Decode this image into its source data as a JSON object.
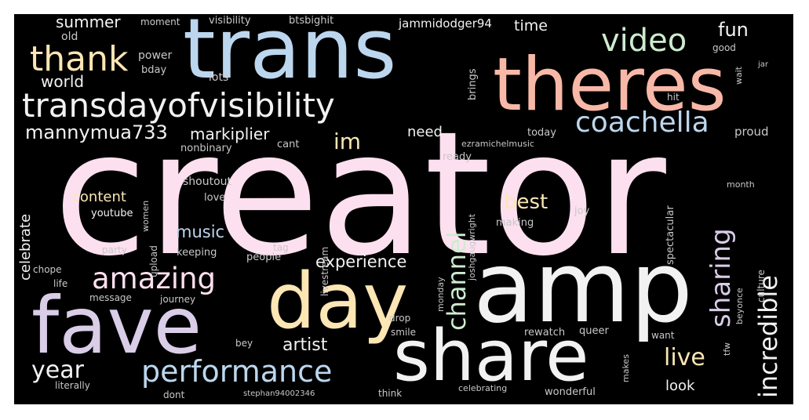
{
  "wordcloud": {
    "colors": {
      "background": "#000000",
      "pink": "#fde0ef",
      "blue": "#bcd6ee",
      "salmon": "#f8b8a8",
      "cream": "#fbe6b4",
      "green": "#cdeccf",
      "lavender": "#d9cde8",
      "white": "#f2f2f2",
      "gray": "#c8c8c8"
    },
    "words": [
      {
        "text": "creator",
        "color": "pink"
      },
      {
        "text": "trans",
        "color": "blue"
      },
      {
        "text": "theres",
        "color": "salmon"
      },
      {
        "text": "amp",
        "color": "white"
      },
      {
        "text": "day",
        "color": "cream"
      },
      {
        "text": "fave",
        "color": "lavender"
      },
      {
        "text": "share",
        "color": "white"
      },
      {
        "text": "transdayofvisibility",
        "color": "white"
      },
      {
        "text": "thank",
        "color": "cream"
      },
      {
        "text": "video",
        "color": "green"
      },
      {
        "text": "coachella",
        "color": "blue"
      },
      {
        "text": "amazing",
        "color": "pink"
      },
      {
        "text": "performance",
        "color": "blue"
      },
      {
        "text": "channel",
        "color": "green"
      },
      {
        "text": "sharing",
        "color": "lavender"
      },
      {
        "text": "incredible",
        "color": "white"
      },
      {
        "text": "live",
        "color": "cream"
      },
      {
        "text": "year",
        "color": "white"
      },
      {
        "text": "im",
        "color": "cream"
      },
      {
        "text": "mannymua733",
        "color": "white"
      },
      {
        "text": "markiplier",
        "color": "white"
      },
      {
        "text": "world",
        "color": "white"
      },
      {
        "text": "summer",
        "color": "white"
      },
      {
        "text": "fun",
        "color": "white"
      },
      {
        "text": "time",
        "color": "white"
      },
      {
        "text": "best",
        "color": "cream"
      },
      {
        "text": "music",
        "color": "blue"
      },
      {
        "text": "experience",
        "color": "white"
      },
      {
        "text": "artist",
        "color": "white"
      },
      {
        "text": "content",
        "color": "cream"
      },
      {
        "text": "celebrate",
        "color": "white"
      },
      {
        "text": "need",
        "color": "white"
      },
      {
        "text": "look",
        "color": "white"
      },
      {
        "text": "jammidodger94",
        "color": "white"
      },
      {
        "text": "visibility",
        "color": "gray"
      },
      {
        "text": "btsbighit",
        "color": "gray"
      },
      {
        "text": "moment",
        "color": "gray"
      },
      {
        "text": "power",
        "color": "gray"
      },
      {
        "text": "bday",
        "color": "gray"
      },
      {
        "text": "lots",
        "color": "gray"
      },
      {
        "text": "old",
        "color": "gray"
      },
      {
        "text": "brings",
        "color": "gray"
      },
      {
        "text": "nonbinary",
        "color": "gray"
      },
      {
        "text": "cant",
        "color": "gray"
      },
      {
        "text": "today",
        "color": "gray"
      },
      {
        "text": "hit",
        "color": "gray"
      },
      {
        "text": "proud",
        "color": "gray"
      },
      {
        "text": "ready",
        "color": "gray"
      },
      {
        "text": "good",
        "color": "gray"
      },
      {
        "text": "shoutout",
        "color": "gray"
      },
      {
        "text": "youtube",
        "color": "white"
      },
      {
        "text": "love",
        "color": "gray"
      },
      {
        "text": "keeping",
        "color": "gray"
      },
      {
        "text": "party",
        "color": "gray"
      },
      {
        "text": "upload",
        "color": "gray"
      },
      {
        "text": "people",
        "color": "gray"
      },
      {
        "text": "chope",
        "color": "gray"
      },
      {
        "text": "life",
        "color": "gray"
      },
      {
        "text": "message",
        "color": "gray"
      },
      {
        "text": "journey",
        "color": "gray"
      },
      {
        "text": "women",
        "color": "gray"
      },
      {
        "text": "livestream",
        "color": "gray"
      },
      {
        "text": "making",
        "color": "gray"
      },
      {
        "text": "joy",
        "color": "gray"
      },
      {
        "text": "spectacular",
        "color": "gray"
      },
      {
        "text": "culture",
        "color": "gray"
      },
      {
        "text": "tag",
        "color": "gray"
      },
      {
        "text": "monday",
        "color": "gray"
      },
      {
        "text": "drop",
        "color": "gray"
      },
      {
        "text": "smile",
        "color": "gray"
      },
      {
        "text": "rewatch",
        "color": "gray"
      },
      {
        "text": "queer",
        "color": "gray"
      },
      {
        "text": "want",
        "color": "gray"
      },
      {
        "text": "beyonce",
        "color": "gray"
      },
      {
        "text": "tfw",
        "color": "gray"
      },
      {
        "text": "bey",
        "color": "gray"
      },
      {
        "text": "literally",
        "color": "gray"
      },
      {
        "text": "dont",
        "color": "gray"
      },
      {
        "text": "stephan94002346",
        "color": "gray"
      },
      {
        "text": "think",
        "color": "gray"
      },
      {
        "text": "celebrating",
        "color": "gray"
      },
      {
        "text": "wonderful",
        "color": "gray"
      },
      {
        "text": "makes",
        "color": "gray"
      },
      {
        "text": "month",
        "color": "gray"
      },
      {
        "text": "joshgaugwright",
        "color": "gray"
      },
      {
        "text": "ezramichelmusic",
        "color": "gray"
      },
      {
        "text": "wait",
        "color": "gray"
      },
      {
        "text": "jar",
        "color": "gray"
      }
    ]
  }
}
